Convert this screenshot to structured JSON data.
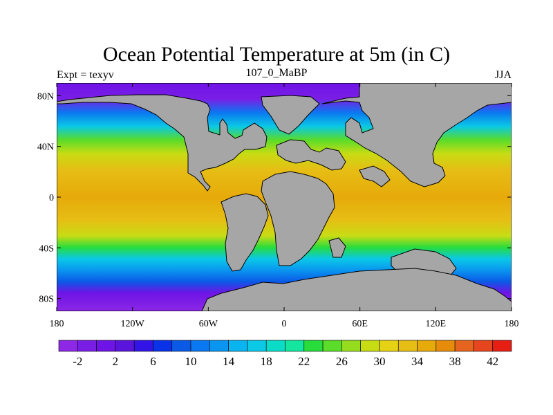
{
  "title": "Ocean Potential Temperature at 5m (in C)",
  "subtitle_left": "Expt = texyv",
  "subtitle_center": "107_0_MaBP",
  "subtitle_right": "JJA",
  "map": {
    "projection": "cylindrical-equidistant",
    "lon_range": [
      -180,
      180
    ],
    "lat_range": [
      -90,
      90
    ],
    "lon_ticks": [
      {
        "value": -180,
        "label": "180"
      },
      {
        "value": -120,
        "label": "120W"
      },
      {
        "value": -60,
        "label": "60W"
      },
      {
        "value": 0,
        "label": "0"
      },
      {
        "value": 60,
        "label": "60E"
      },
      {
        "value": 120,
        "label": "120E"
      },
      {
        "value": 180,
        "label": "180"
      }
    ],
    "lat_ticks": [
      {
        "value": 80,
        "label": "80N"
      },
      {
        "value": 40,
        "label": "40N"
      },
      {
        "value": 0,
        "label": "0"
      },
      {
        "value": -40,
        "label": "40S"
      },
      {
        "value": -80,
        "label": "80S"
      }
    ],
    "land_color": "#a6a6a6"
  },
  "colorbar": {
    "min": -4,
    "max": 44,
    "step": 2,
    "labels": [
      "-2",
      "2",
      "6",
      "10",
      "14",
      "18",
      "22",
      "26",
      "30",
      "34",
      "38",
      "42"
    ],
    "colors": [
      "#8c28e6",
      "#7a1ee6",
      "#6e14e6",
      "#5a14dc",
      "#3214e6",
      "#0a32e6",
      "#0a5ae6",
      "#0a78f0",
      "#0a96f0",
      "#0ab4f0",
      "#0ac8e6",
      "#0adcc8",
      "#14e6a0",
      "#28dc3c",
      "#5adc28",
      "#96dc1e",
      "#c8dc14",
      "#e6d214",
      "#e6be14",
      "#e6aa0a",
      "#e68c0a",
      "#e6641e",
      "#e6461e",
      "#e61e14"
    ]
  }
}
